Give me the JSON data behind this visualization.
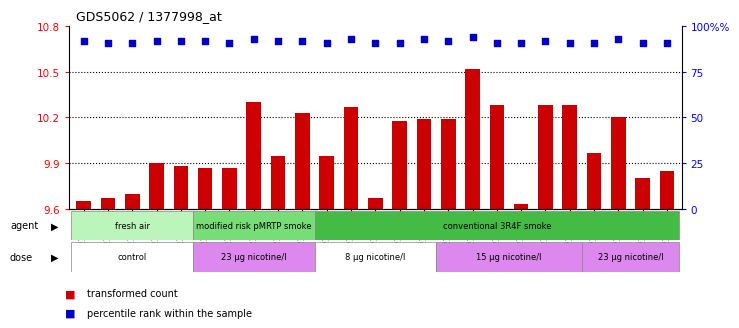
{
  "title": "GDS5062 / 1377998_at",
  "samples": [
    "GSM1217181",
    "GSM1217182",
    "GSM1217183",
    "GSM1217184",
    "GSM1217185",
    "GSM1217186",
    "GSM1217187",
    "GSM1217188",
    "GSM1217189",
    "GSM1217190",
    "GSM1217196",
    "GSM1217197",
    "GSM1217198",
    "GSM1217199",
    "GSM1217200",
    "GSM1217191",
    "GSM1217192",
    "GSM1217193",
    "GSM1217194",
    "GSM1217195",
    "GSM1217201",
    "GSM1217202",
    "GSM1217203",
    "GSM1217204",
    "GSM1217205"
  ],
  "bar_values": [
    9.65,
    9.67,
    9.7,
    9.9,
    9.88,
    9.87,
    9.87,
    10.3,
    9.95,
    10.23,
    9.95,
    10.27,
    9.67,
    10.18,
    10.19,
    10.19,
    10.52,
    10.28,
    9.63,
    10.28,
    10.28,
    9.97,
    10.2,
    9.8,
    9.85
  ],
  "percentile_values": [
    92,
    91,
    91,
    92,
    92,
    92,
    91,
    93,
    92,
    92,
    91,
    93,
    91,
    91,
    93,
    92,
    94,
    91,
    91,
    92,
    91,
    91,
    93,
    91,
    91
  ],
  "ylim_left": [
    9.6,
    10.8
  ],
  "ylim_right": [
    0,
    100
  ],
  "yticks_left": [
    9.6,
    9.9,
    10.2,
    10.5,
    10.8
  ],
  "yticks_right": [
    0,
    25,
    50,
    75,
    100
  ],
  "bar_color": "#cc0000",
  "dot_color": "#0000cc",
  "agent_colors": {
    "fresh air": "#bbf5bb",
    "modified risk pMRTP smoke": "#77dd77",
    "conventional 3R4F smoke": "#44bb44"
  },
  "agent_groups": [
    {
      "label": "fresh air",
      "start": 0,
      "end": 5
    },
    {
      "label": "modified risk pMRTP smoke",
      "start": 5,
      "end": 10
    },
    {
      "label": "conventional 3R4F smoke",
      "start": 10,
      "end": 25
    }
  ],
  "dose_colors": {
    "control": "#ffffff",
    "23 μg nicotine/l_1": "#dd88ee",
    "8 μg nicotine/l": "#ffffff",
    "15 μg nicotine/l": "#dd88ee",
    "23 μg nicotine/l_2": "#dd88ee"
  },
  "dose_groups": [
    {
      "label": "control",
      "key": "control",
      "start": 0,
      "end": 5
    },
    {
      "label": "23 μg nicotine/l",
      "key": "23 μg nicotine/l_1",
      "start": 5,
      "end": 10
    },
    {
      "label": "8 μg nicotine/l",
      "key": "8 μg nicotine/l",
      "start": 10,
      "end": 15
    },
    {
      "label": "15 μg nicotine/l",
      "key": "15 μg nicotine/l",
      "start": 15,
      "end": 21
    },
    {
      "label": "23 μg nicotine/l",
      "key": "23 μg nicotine/l_2",
      "start": 21,
      "end": 25
    }
  ],
  "legend_transformed": "transformed count",
  "legend_percentile": "percentile rank within the sample",
  "legend_transformed_color": "#cc0000",
  "legend_percentile_color": "#0000cc"
}
